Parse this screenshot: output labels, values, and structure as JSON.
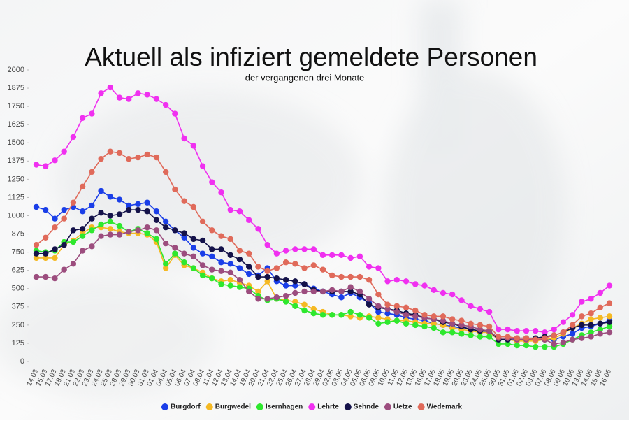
{
  "chart_data": {
    "type": "line",
    "title": "Aktuell als infiziert gemeldete Personen",
    "subtitle": "der vergangenen drei Monate",
    "categories": [
      "14.03",
      "15.03",
      "17.03",
      "18.03",
      "21.03",
      "22.03",
      "23.03",
      "24.03",
      "25.03",
      "28.03",
      "29.03",
      "30.03",
      "31.03",
      "01.04",
      "04.04",
      "05.04",
      "06.04",
      "07.04",
      "08.04",
      "11.04",
      "12.04",
      "13.04",
      "14.04",
      "19.04",
      "20.04",
      "21.04",
      "22.04",
      "25.04",
      "26.04",
      "27.04",
      "28.04",
      "29.04",
      "02.05",
      "03.05",
      "04.05",
      "05.05",
      "06.05",
      "09.05",
      "10.05",
      "11.05",
      "12.05",
      "13.05",
      "16.05",
      "17.05",
      "18.05",
      "19.05",
      "20.05",
      "23.05",
      "24.05",
      "25.05",
      "30.05",
      "31.05",
      "01.06",
      "02.06",
      "03.06",
      "07.06",
      "08.06",
      "09.06",
      "10.06",
      "13.06",
      "14.06",
      "15.06",
      "16.06"
    ],
    "series": [
      {
        "name": "Burgdorf",
        "color": "#1a3ee8",
        "values": [
          1060,
          1040,
          980,
          1040,
          1060,
          1030,
          1070,
          1170,
          1130,
          1110,
          1070,
          1080,
          1090,
          1030,
          960,
          900,
          850,
          780,
          740,
          720,
          680,
          670,
          640,
          600,
          590,
          640,
          550,
          520,
          520,
          530,
          500,
          480,
          460,
          440,
          470,
          440,
          400,
          340,
          330,
          320,
          300,
          290,
          280,
          260,
          250,
          240,
          230,
          220,
          210,
          200,
          150,
          150,
          150,
          150,
          150,
          150,
          150,
          170,
          190,
          230,
          240,
          260,
          280
        ]
      },
      {
        "name": "Burgwedel",
        "color": "#f5b923",
        "values": [
          710,
          710,
          710,
          800,
          830,
          880,
          920,
          920,
          910,
          890,
          880,
          880,
          870,
          820,
          640,
          730,
          660,
          640,
          610,
          570,
          550,
          560,
          540,
          520,
          480,
          550,
          430,
          420,
          410,
          390,
          360,
          340,
          320,
          320,
          310,
          300,
          310,
          300,
          290,
          280,
          280,
          270,
          260,
          260,
          250,
          230,
          220,
          210,
          200,
          200,
          150,
          150,
          140,
          140,
          140,
          150,
          160,
          190,
          230,
          260,
          290,
          300,
          310
        ]
      },
      {
        "name": "Isernhagen",
        "color": "#2ee82e",
        "values": [
          760,
          750,
          760,
          820,
          820,
          860,
          900,
          940,
          960,
          930,
          890,
          910,
          880,
          840,
          670,
          740,
          680,
          640,
          590,
          570,
          530,
          520,
          510,
          500,
          450,
          420,
          430,
          410,
          380,
          350,
          330,
          320,
          320,
          320,
          340,
          320,
          300,
          260,
          270,
          280,
          260,
          250,
          240,
          230,
          200,
          200,
          190,
          180,
          170,
          170,
          120,
          120,
          110,
          110,
          100,
          100,
          100,
          120,
          150,
          180,
          200,
          220,
          240
        ]
      },
      {
        "name": "Lehrte",
        "color": "#f030f0",
        "values": [
          1350,
          1340,
          1380,
          1440,
          1540,
          1670,
          1700,
          1840,
          1880,
          1810,
          1800,
          1840,
          1830,
          1800,
          1760,
          1700,
          1530,
          1480,
          1340,
          1230,
          1160,
          1040,
          1030,
          970,
          910,
          800,
          740,
          760,
          770,
          770,
          770,
          730,
          730,
          730,
          710,
          720,
          650,
          640,
          550,
          560,
          550,
          530,
          520,
          490,
          470,
          460,
          420,
          380,
          360,
          340,
          220,
          220,
          210,
          210,
          210,
          200,
          220,
          270,
          320,
          410,
          430,
          470,
          520
        ]
      },
      {
        "name": "Sehnde",
        "color": "#14124a",
        "values": [
          740,
          740,
          770,
          800,
          900,
          910,
          980,
          1020,
          1000,
          1010,
          1040,
          1040,
          1030,
          970,
          920,
          900,
          880,
          840,
          830,
          770,
          770,
          730,
          700,
          650,
          580,
          580,
          570,
          560,
          550,
          530,
          490,
          480,
          480,
          480,
          480,
          460,
          390,
          370,
          360,
          350,
          330,
          320,
          300,
          290,
          270,
          260,
          240,
          220,
          210,
          210,
          150,
          150,
          160,
          160,
          160,
          170,
          180,
          200,
          230,
          250,
          250,
          260,
          270
        ]
      },
      {
        "name": "Uetze",
        "color": "#9c4d7e",
        "values": [
          580,
          580,
          570,
          630,
          670,
          760,
          790,
          860,
          870,
          870,
          890,
          900,
          920,
          900,
          810,
          780,
          740,
          720,
          660,
          630,
          620,
          610,
          560,
          480,
          430,
          430,
          440,
          450,
          470,
          480,
          480,
          480,
          490,
          480,
          510,
          480,
          430,
          380,
          360,
          340,
          320,
          310,
          300,
          290,
          280,
          260,
          250,
          240,
          220,
          210,
          160,
          160,
          150,
          150,
          150,
          150,
          120,
          130,
          150,
          160,
          170,
          190,
          200
        ]
      },
      {
        "name": "Wedemark",
        "color": "#e06a5a",
        "values": [
          800,
          850,
          920,
          980,
          1090,
          1200,
          1300,
          1390,
          1440,
          1430,
          1390,
          1400,
          1420,
          1400,
          1300,
          1180,
          1100,
          1060,
          960,
          900,
          860,
          840,
          760,
          740,
          650,
          620,
          640,
          680,
          670,
          640,
          660,
          630,
          590,
          580,
          580,
          580,
          560,
          460,
          390,
          380,
          370,
          350,
          320,
          310,
          310,
          290,
          280,
          260,
          250,
          240,
          170,
          170,
          160,
          160,
          150,
          160,
          180,
          200,
          250,
          310,
          330,
          370,
          400
        ]
      }
    ],
    "ylim": [
      0,
      2000
    ],
    "yticks": [
      0,
      125,
      250,
      375,
      500,
      625,
      750,
      875,
      1000,
      1125,
      1250,
      1375,
      1500,
      1625,
      1750,
      1875,
      2000
    ],
    "legend": "bottom"
  }
}
